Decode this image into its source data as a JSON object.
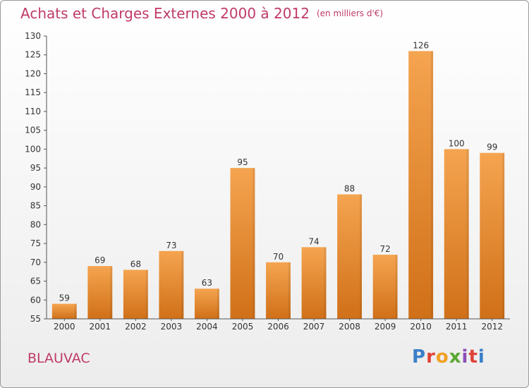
{
  "header": {
    "title": "Achats et Charges Externes 2000 à 2012",
    "unit": "(en milliers d'€)"
  },
  "footer": {
    "place": "BLAUVAC",
    "logo_text": "Proxiti",
    "logo_colors": [
      "#3a7fc8",
      "#e0443a",
      "#f0a020",
      "#5aa832",
      "#8a4fb8",
      "#e0443a",
      "#3a7fc8"
    ]
  },
  "chart_data": {
    "type": "bar",
    "categories": [
      "2000",
      "2001",
      "2002",
      "2003",
      "2004",
      "2005",
      "2006",
      "2007",
      "2008",
      "2009",
      "2010",
      "2011",
      "2012"
    ],
    "values": [
      59,
      69,
      68,
      73,
      63,
      95,
      70,
      74,
      88,
      72,
      126,
      100,
      99
    ],
    "title": "Achats et Charges Externes 2000 à 2012",
    "ylim": [
      55,
      130
    ],
    "yticks": [
      55,
      60,
      65,
      70,
      75,
      80,
      85,
      90,
      95,
      100,
      105,
      110,
      115,
      120,
      125,
      130
    ],
    "grid": false,
    "colors": {
      "bar_top": "#f5a450",
      "bar_bottom": "#d07018",
      "axis": "#555555",
      "text": "#333333"
    }
  }
}
